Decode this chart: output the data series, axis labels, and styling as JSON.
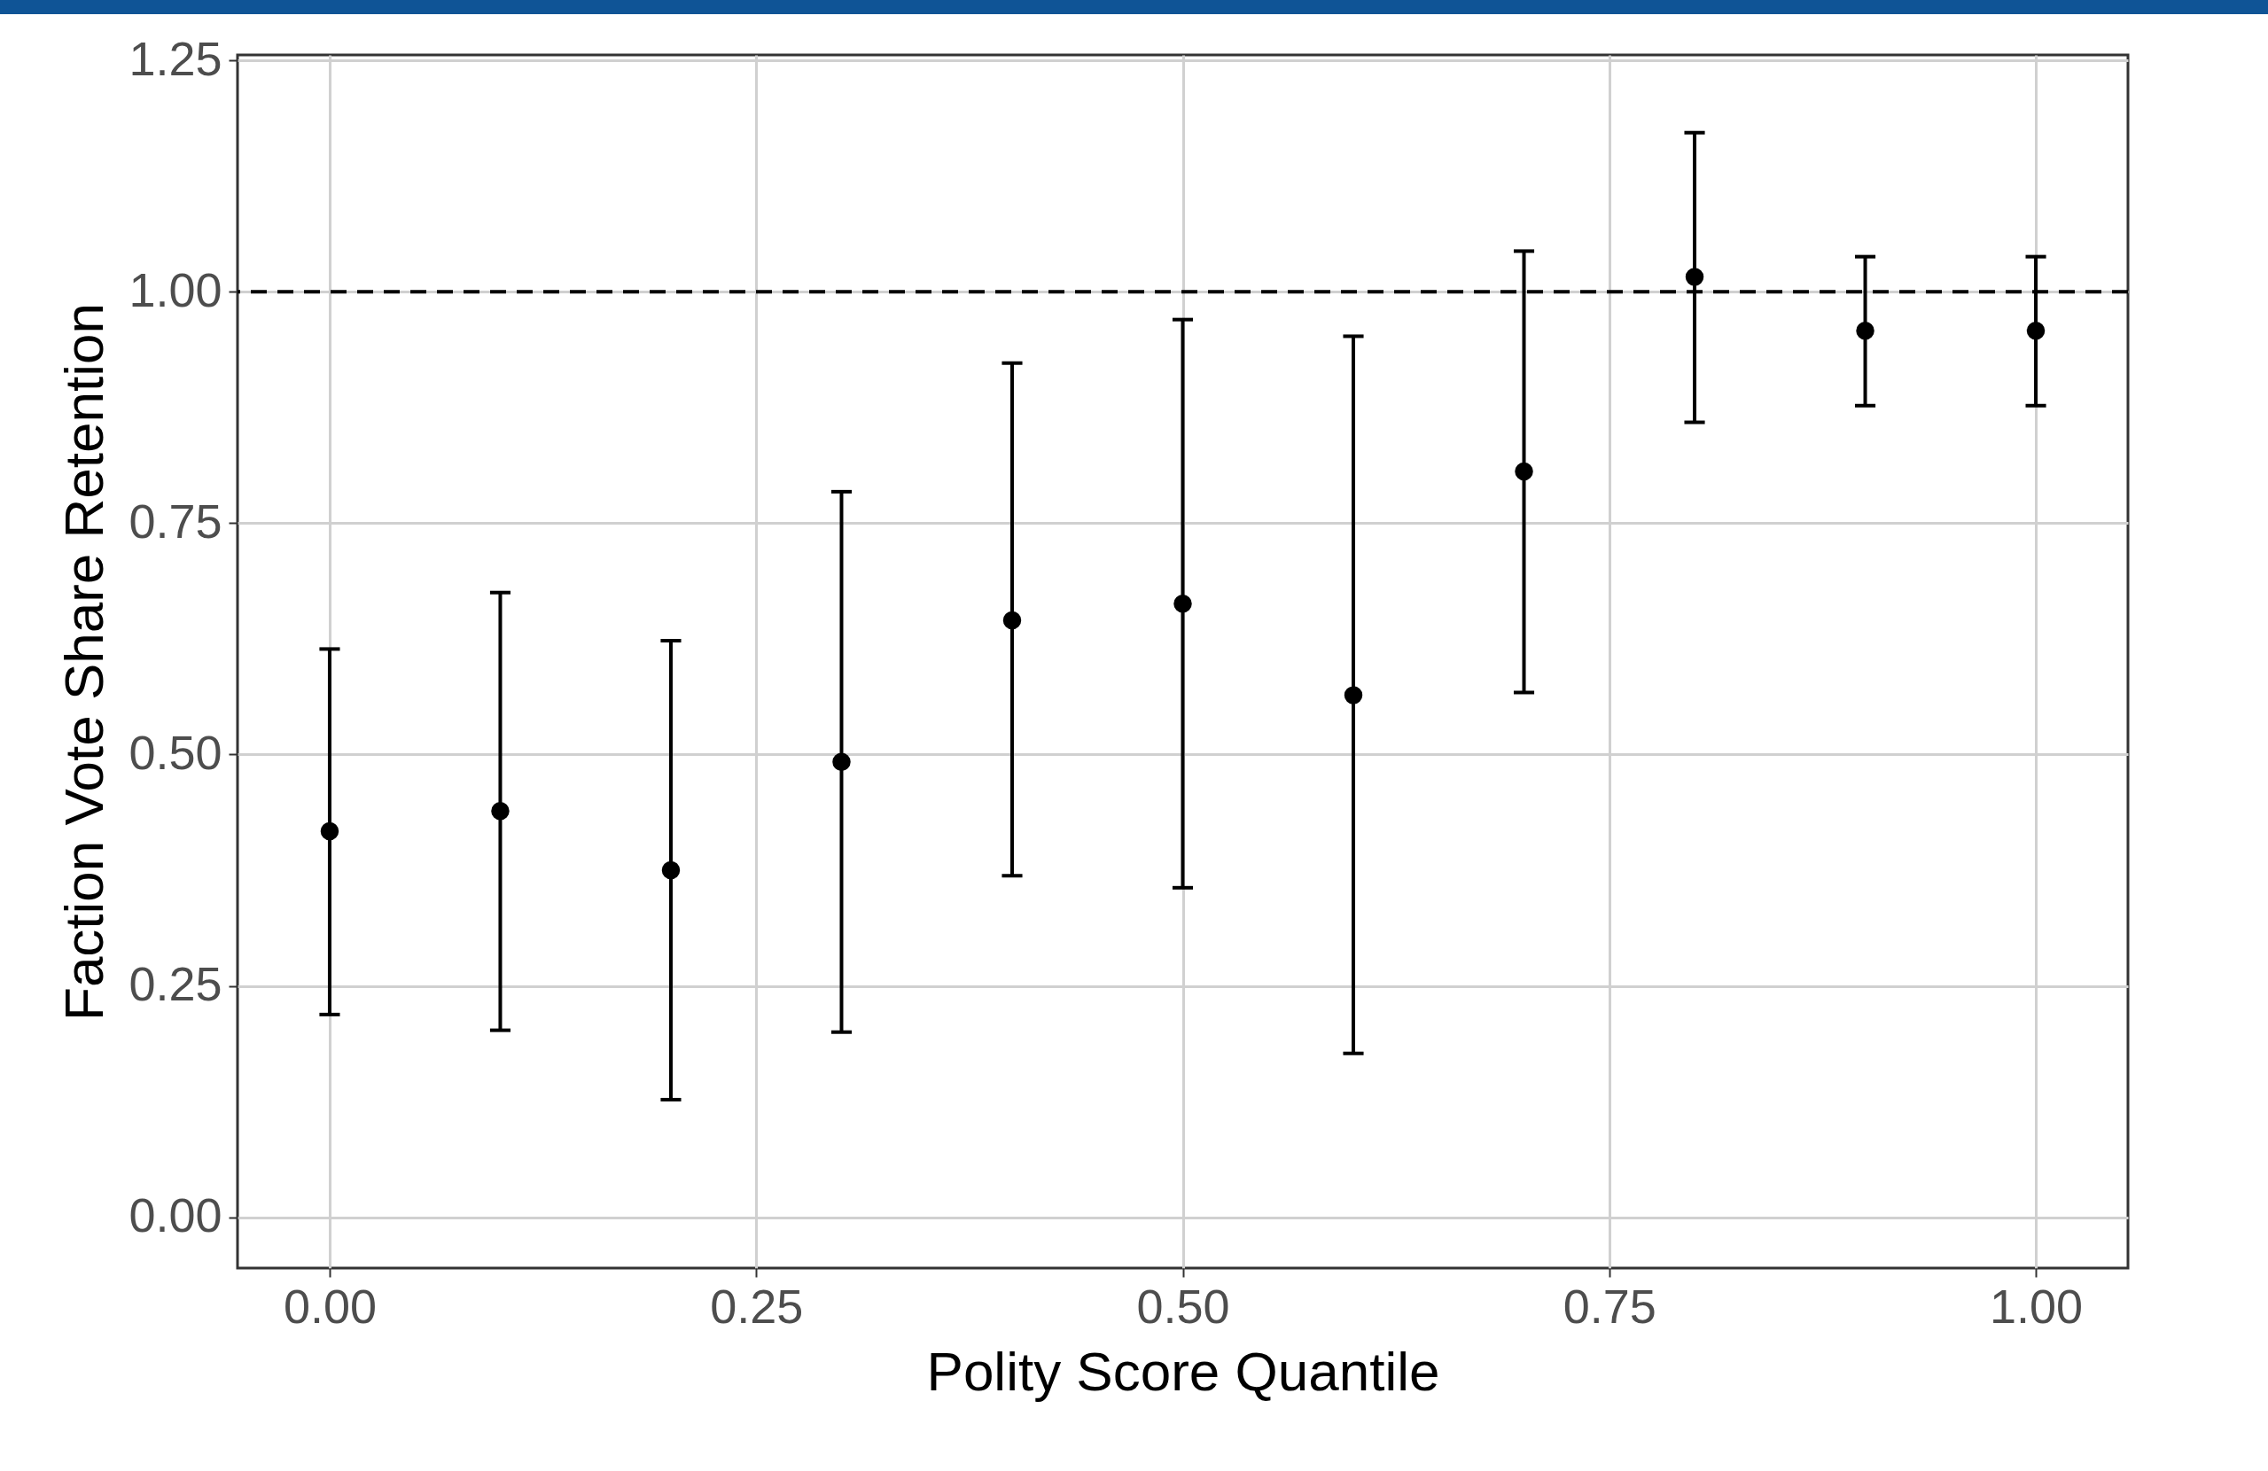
{
  "chart_data": {
    "type": "scatter",
    "xlabel": "Polity Score Quantile",
    "ylabel": "Faction Vote Share Retention",
    "x": [
      0,
      0.1,
      0.2,
      0.3,
      0.4,
      0.5,
      0.6,
      0.7,
      0.8,
      0.9,
      1.0
    ],
    "values": [
      0.417,
      0.439,
      0.375,
      0.492,
      0.645,
      0.663,
      0.564,
      0.806,
      1.016,
      0.958,
      0.958
    ],
    "errors": [
      [
        0.219,
        0.614
      ],
      [
        0.202,
        0.675
      ],
      [
        0.127,
        0.623
      ],
      [
        0.2,
        0.784
      ],
      [
        0.369,
        0.923
      ],
      [
        0.356,
        0.97
      ],
      [
        0.177,
        0.952
      ],
      [
        0.567,
        1.044
      ],
      [
        0.859,
        1.172
      ],
      [
        0.877,
        1.038
      ],
      [
        0.877,
        1.038
      ]
    ],
    "color": "#000000",
    "marker": "circle",
    "xlim": [
      -0.054,
      1.054
    ],
    "xticks": [
      {
        "value": 0,
        "label": "0.00"
      },
      {
        "value": 0.25,
        "label": "0.25"
      },
      {
        "value": 0.5,
        "label": "0.50"
      },
      {
        "value": 0.75,
        "label": "0.75"
      },
      {
        "value": 1,
        "label": "1.00"
      }
    ],
    "ylim": [
      -0.055,
      1.256
    ],
    "yticks": [
      {
        "value": 0,
        "label": "0.00"
      },
      {
        "value": 0.25,
        "label": "0.25"
      },
      {
        "value": 0.5,
        "label": "0.50"
      },
      {
        "value": 0.75,
        "label": "0.75"
      },
      {
        "value": 1,
        "label": "1.00"
      },
      {
        "value": 1.25,
        "label": "1.25"
      }
    ],
    "grid": true,
    "ref_lines": [
      {
        "axis": "y",
        "value": 1,
        "label": null,
        "color": "#000000",
        "line_style": "dashed"
      }
    ]
  }
}
